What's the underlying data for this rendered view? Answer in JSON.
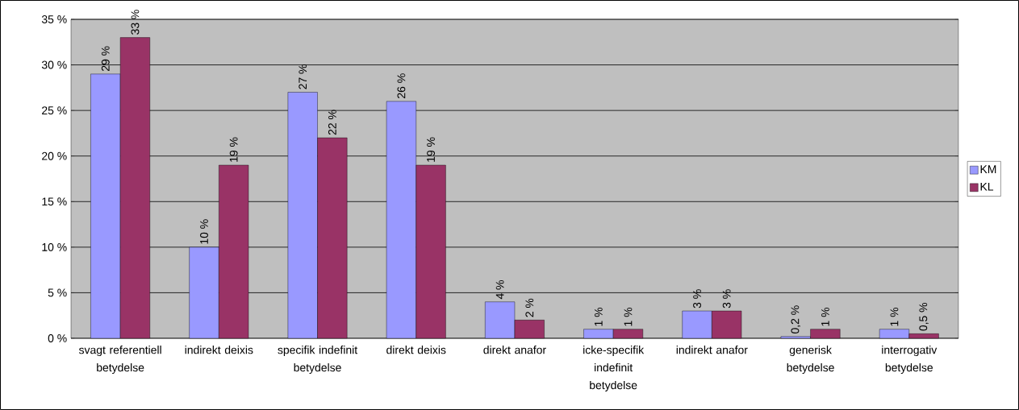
{
  "chart_data": {
    "type": "bar",
    "categories": [
      "svagt referentiell betydelse",
      "indirekt deixis",
      "specifik indefinit betydelse",
      "direkt deixis",
      "direkt anafor",
      "icke-specifik indefinit betydelse",
      "indirekt anafor",
      "generisk betydelse",
      "interrogativ betydelse"
    ],
    "series": [
      {
        "name": "KM",
        "color": "#9999ff",
        "values": [
          29,
          10,
          27,
          26,
          4,
          1,
          3,
          0.2,
          1
        ],
        "value_labels": [
          "29 %",
          "10 %",
          "27 %",
          "26 %",
          "4 %",
          "1 %",
          "3 %",
          "0,2 %",
          "1 %"
        ]
      },
      {
        "name": "KL",
        "color": "#993366",
        "values": [
          33,
          19,
          22,
          19,
          2,
          1,
          3,
          1,
          0.5
        ],
        "value_labels": [
          "33 %",
          "19 %",
          "22 %",
          "19 %",
          "2 %",
          "1 %",
          "3 %",
          "1 %",
          "0,5 %"
        ]
      }
    ],
    "ylim": [
      0,
      35
    ],
    "yticks": [
      {
        "value": 0,
        "label": "0 %"
      },
      {
        "value": 5,
        "label": "5 %"
      },
      {
        "value": 10,
        "label": "10 %"
      },
      {
        "value": 15,
        "label": "15 %"
      },
      {
        "value": 20,
        "label": "20 %"
      },
      {
        "value": 25,
        "label": "25 %"
      },
      {
        "value": 30,
        "label": "30 %"
      },
      {
        "value": 35,
        "label": "35 %"
      }
    ],
    "grid": "y",
    "legend": "right"
  }
}
